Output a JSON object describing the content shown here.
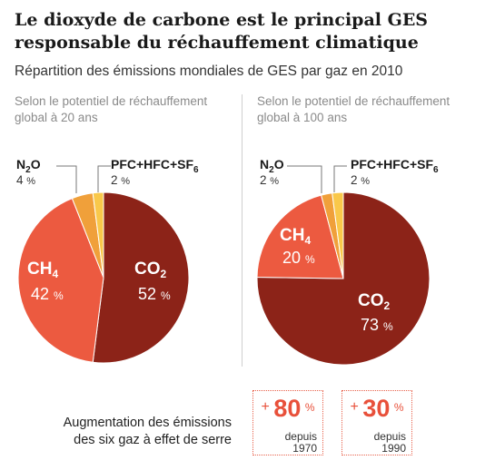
{
  "title": "Le dioxyde de carbone est le principal GES responsable du réchauffement climatique",
  "subtitle": "Répartition des émissions mondiales de GES par gaz en 2010",
  "colors": {
    "co2": "#8c2318",
    "ch4": "#ec5a40",
    "n2o": "#f0a03a",
    "fgas": "#f9c84a",
    "accent": "#e8503a"
  },
  "chart_data": [
    {
      "type": "pie",
      "title": "Selon le potentiel de réchauffement global à 20 ans",
      "slices": [
        {
          "label": "CO₂",
          "value": 52
        },
        {
          "label": "CH₄",
          "value": 42
        },
        {
          "label": "N₂O",
          "value": 4
        },
        {
          "label": "PFC+HFC+SF₆",
          "value": 2
        }
      ]
    },
    {
      "type": "pie",
      "title": "Selon le potentiel de réchauffement global à 100 ans",
      "slices": [
        {
          "label": "CO₂",
          "value": 73
        },
        {
          "label": "CH₄",
          "value": 20
        },
        {
          "label": "N₂O",
          "value": 2
        },
        {
          "label": "PFC+HFC+SF₆",
          "value": 2
        }
      ]
    }
  ],
  "labels": {
    "pct_unit": "%",
    "co2_main": "CO",
    "co2_sub": "2",
    "ch4_main": "CH",
    "ch4_sub": "4",
    "n2o_a": "N",
    "n2o_sub": "2",
    "n2o_b": "O",
    "fgas_main": "PFC+HFC+SF",
    "fgas_sub": "6"
  },
  "left_pct": {
    "co2": "52",
    "ch4": "42",
    "n2o": "4",
    "fgas": "2"
  },
  "right_pct": {
    "co2": "73",
    "ch4": "20",
    "n2o": "2",
    "fgas": "2"
  },
  "increase": {
    "label_line1": "Augmentation des émissions",
    "label_line2": "des six gaz à effet de serre",
    "items": [
      {
        "sign": "+",
        "value": "80",
        "unit": "%",
        "since_label": "depuis",
        "year": "1970"
      },
      {
        "sign": "+",
        "value": "30",
        "unit": "%",
        "since_label": "depuis",
        "year": "1990"
      }
    ]
  }
}
